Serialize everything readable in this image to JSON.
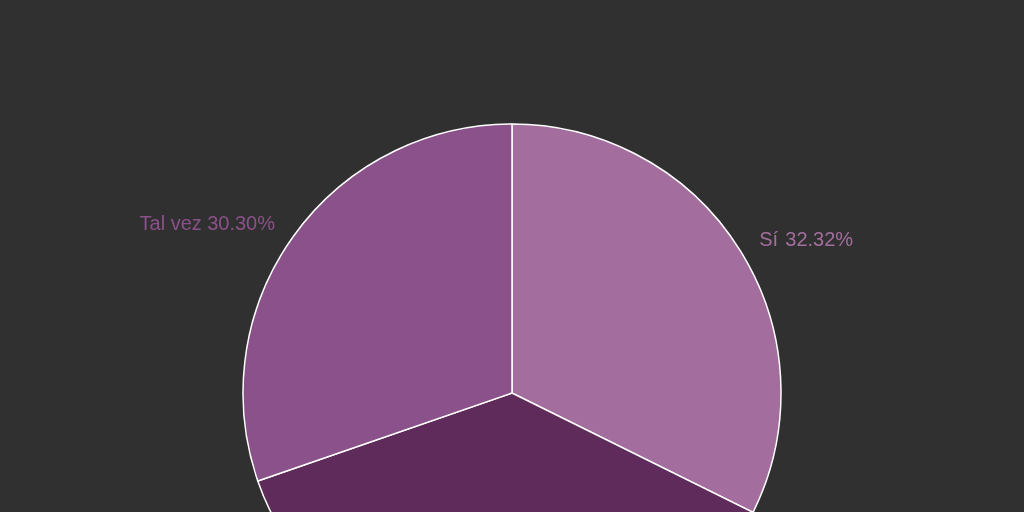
{
  "chart_data": {
    "type": "pie",
    "categories": [
      "Sí",
      null,
      "Tal vez"
    ],
    "values": [
      32.32,
      37.38,
      30.3
    ],
    "colors": [
      "#a36e9e",
      "#5f2b5b",
      "#8b518a"
    ],
    "value_labels": [
      "32.32%",
      null,
      "30.30%"
    ]
  }
}
